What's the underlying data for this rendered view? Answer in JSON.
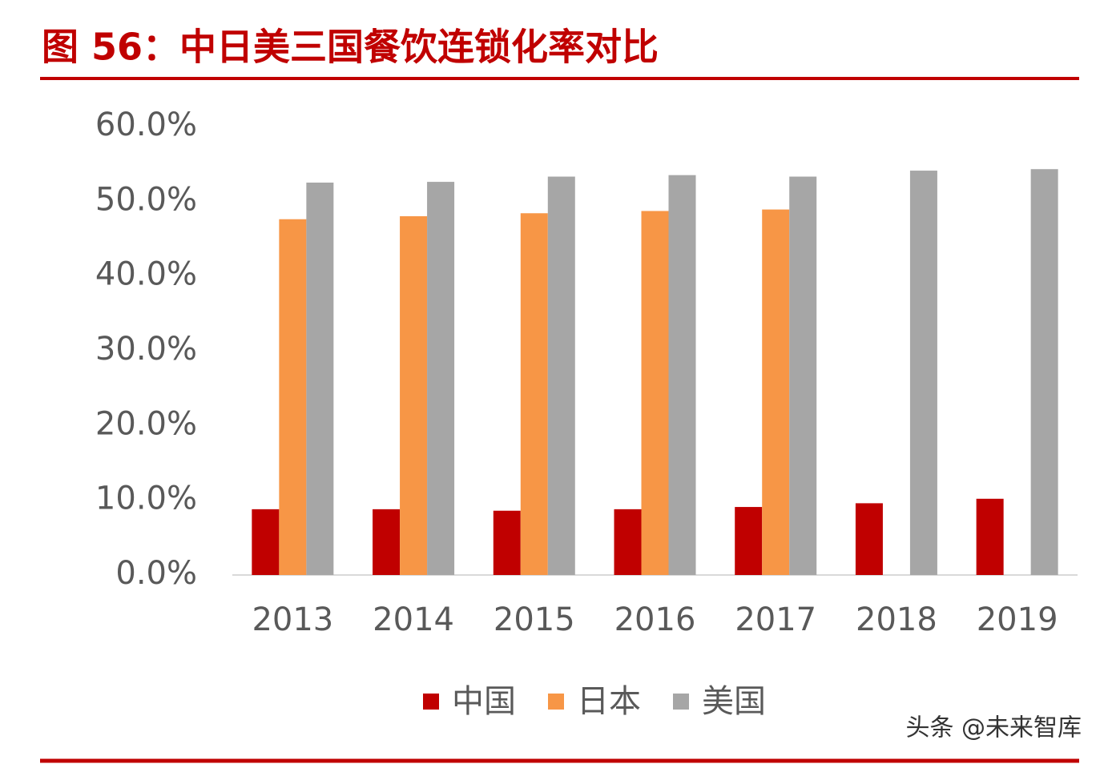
{
  "chart_data": {
    "type": "bar",
    "title": "图 56：中日美三国餐饮连锁化率对比",
    "watermark": "头条 @未来智库",
    "categories": [
      "2013",
      "2014",
      "2015",
      "2016",
      "2017",
      "2018",
      "2019"
    ],
    "series": [
      {
        "name": "中国",
        "color": "#c00000",
        "values": [
          8.8,
          8.8,
          8.6,
          8.8,
          9.1,
          9.6,
          10.2
        ]
      },
      {
        "name": "日本",
        "color": "#f79646",
        "values": [
          47.6,
          48.0,
          48.4,
          48.7,
          48.9,
          null,
          null
        ]
      },
      {
        "name": "美国",
        "color": "#a6a6a6",
        "values": [
          52.5,
          52.6,
          53.3,
          53.5,
          53.3,
          54.1,
          54.3
        ]
      }
    ],
    "ylim": [
      0,
      60
    ],
    "yticks": [
      {
        "value": 0,
        "label": "0.0%"
      },
      {
        "value": 10,
        "label": "10.0%"
      },
      {
        "value": 20,
        "label": "20.0%"
      },
      {
        "value": 30,
        "label": "30.0%"
      },
      {
        "value": 40,
        "label": "40.0%"
      },
      {
        "value": 50,
        "label": "50.0%"
      },
      {
        "value": 60,
        "label": "60.0%"
      }
    ],
    "legend": "bottom"
  }
}
